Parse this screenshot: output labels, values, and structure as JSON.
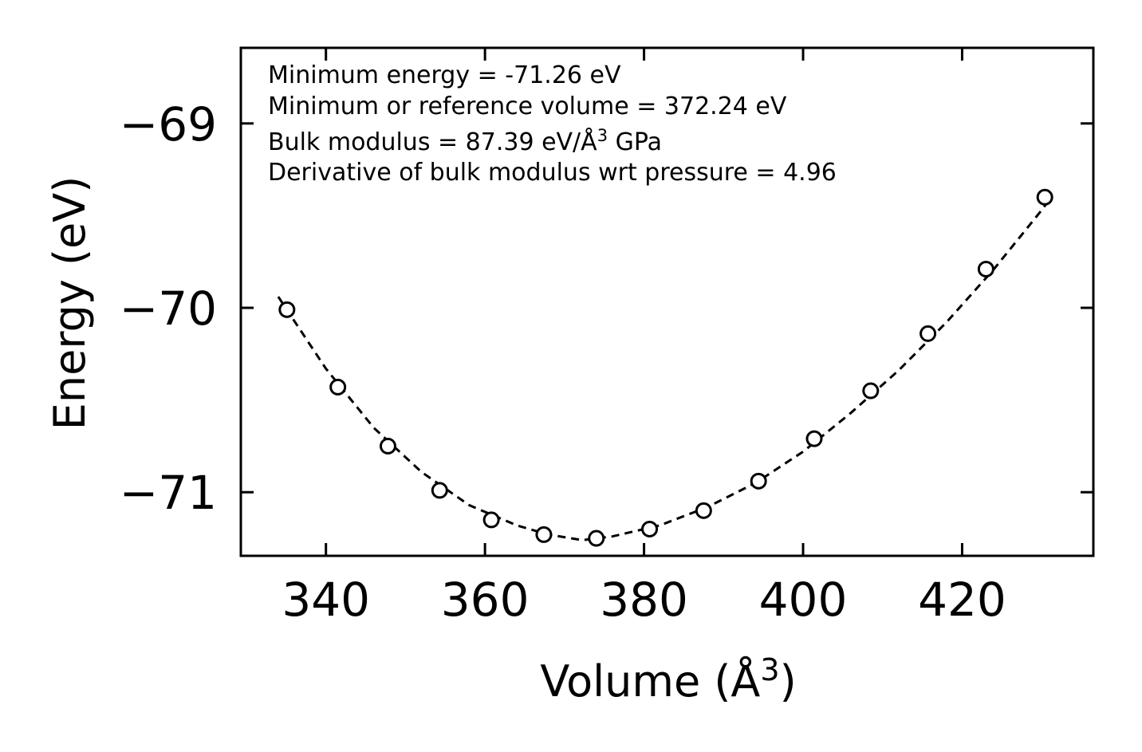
{
  "chart_data": {
    "type": "scatter",
    "title": "",
    "xlabel_main": "Volume (Å",
    "xlabel_sup": "3",
    "xlabel_end": ")",
    "ylabel": "Energy (eV)",
    "xlim": [
      329.3,
      436.5
    ],
    "ylim": [
      -71.345,
      -68.59
    ],
    "xticks": [
      340,
      360,
      380,
      400,
      420
    ],
    "xtick_labels": [
      "340",
      "360",
      "380",
      "400",
      "420"
    ],
    "yticks": [
      -69,
      -70,
      -71
    ],
    "ytick_labels": [
      "−69",
      "−70",
      "−71"
    ],
    "series": [
      {
        "name": "data",
        "style": "open-circle",
        "x": [
          335.1,
          341.5,
          347.8,
          354.3,
          360.8,
          367.4,
          374.0,
          380.7,
          387.5,
          394.4,
          401.4,
          408.5,
          415.7,
          423.0,
          430.4
        ],
        "y": [
          -70.01,
          -70.43,
          -70.75,
          -70.99,
          -71.15,
          -71.23,
          -71.25,
          -71.2,
          -71.1,
          -70.94,
          -70.71,
          -70.45,
          -70.14,
          -69.79,
          -69.4
        ]
      },
      {
        "name": "fit",
        "style": "dashed-line",
        "x": [
          334.0,
          340.0,
          346.0,
          352.0,
          358.0,
          364.0,
          368.0,
          372.24,
          376.0,
          382.0,
          388.0,
          394.0,
          400.0,
          406.0,
          412.0,
          418.0,
          424.0,
          430.0,
          431.2
        ],
        "y": [
          -69.94,
          -70.33,
          -70.65,
          -70.89,
          -71.07,
          -71.18,
          -71.23,
          -71.26,
          -71.24,
          -71.18,
          -71.08,
          -70.95,
          -70.78,
          -70.57,
          -70.34,
          -70.08,
          -69.79,
          -69.47,
          -69.4
        ]
      }
    ],
    "annotations": [
      {
        "text": "Minimum energy = -71.26 eV"
      },
      {
        "text": "Minimum or reference volume = 372.24 eV"
      },
      {
        "text_main": "Bulk modulus = 87.39 eV/Å",
        "text_sup": "3",
        "text_end": " GPa"
      },
      {
        "text": "Derivative of bulk modulus wrt pressure = 4.96"
      }
    ]
  }
}
